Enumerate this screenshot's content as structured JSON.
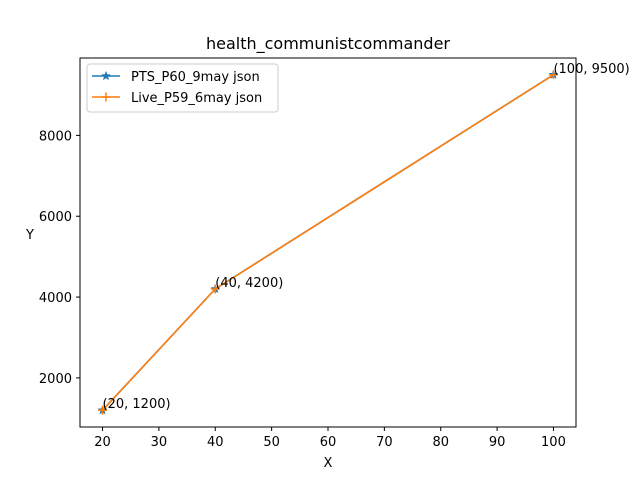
{
  "chart_data": {
    "type": "line",
    "title": "health_communistcommander",
    "xlabel": "X",
    "ylabel": "Y",
    "xlim": [
      16,
      104
    ],
    "ylim": [
      785,
      9915
    ],
    "x_ticks": [
      20,
      30,
      40,
      50,
      60,
      70,
      80,
      90,
      100
    ],
    "y_ticks": [
      2000,
      4000,
      6000,
      8000
    ],
    "grid": false,
    "legend_position": "upper-left",
    "series": [
      {
        "name": "PTS_P60_9may json",
        "marker": "star",
        "color": "#1f77b4",
        "x": [
          20,
          40,
          100
        ],
        "y": [
          1200,
          4200,
          9500
        ]
      },
      {
        "name": "Live_P59_6may json",
        "marker": "plus",
        "color": "#ff7f0e",
        "x": [
          20,
          40,
          100
        ],
        "y": [
          1200,
          4200,
          9500
        ]
      }
    ],
    "annotations": [
      {
        "text": "(20, 1200)",
        "x": 20,
        "y": 1200
      },
      {
        "text": "(40, 4200)",
        "x": 40,
        "y": 4200
      },
      {
        "text": "(100, 9500)",
        "x": 100,
        "y": 9500
      }
    ]
  }
}
